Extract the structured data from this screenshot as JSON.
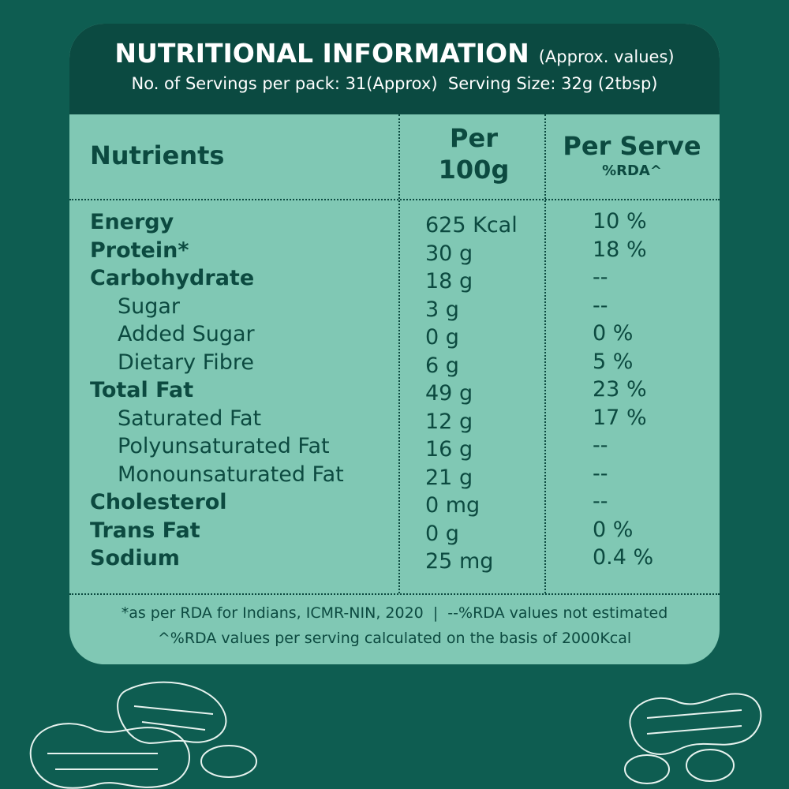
{
  "header": {
    "title": "NUTRITIONAL INFORMATION",
    "title_note": "(Approx. values)",
    "subtitle": "No. of Servings per pack: 31(Approx)  Serving Size: 32g (2tbsp)"
  },
  "table": {
    "columns": {
      "nutrients": "Nutrients",
      "per_100g": "Per 100g",
      "per_serve": "Per Serve",
      "per_serve_note": "%RDA^"
    },
    "rows": [
      {
        "name": "Energy",
        "per_100g": "625 Kcal",
        "rda": "10 %"
      },
      {
        "name": "Protein*",
        "per_100g": "30 g",
        "rda": "18 %"
      },
      {
        "name": "Carbohydrate",
        "per_100g": "18 g",
        "rda": "--",
        "sub": [
          {
            "name": "Sugar",
            "per_100g": "3 g",
            "rda": "--"
          },
          {
            "name": "Added Sugar",
            "per_100g": "0 g",
            "rda": "0 %"
          },
          {
            "name": "Dietary Fibre",
            "per_100g": "6 g",
            "rda": "5 %"
          }
        ]
      },
      {
        "name": "Total Fat",
        "per_100g": "49 g",
        "rda": "23 %",
        "sub": [
          {
            "name": "Saturated Fat",
            "per_100g": "12 g",
            "rda": "17 %"
          },
          {
            "name": "Polyunsaturated Fat",
            "per_100g": "16 g",
            "rda": "--"
          },
          {
            "name": "Monounsaturated Fat",
            "per_100g": "21 g",
            "rda": "--"
          }
        ]
      },
      {
        "name": "Cholesterol",
        "per_100g": "0 mg",
        "rda": "--"
      },
      {
        "name": "Trans Fat",
        "per_100g": "0 g",
        "rda": "0 %"
      },
      {
        "name": "Sodium",
        "per_100g": "25 mg",
        "rda": "0.4 %"
      }
    ]
  },
  "footnotes": [
    "*as per RDA for Indians, ICMR-NIN, 2020  |  --%RDA values not estimated",
    "^%RDA values per serving calculated on the basis of 2000Kcal"
  ]
}
